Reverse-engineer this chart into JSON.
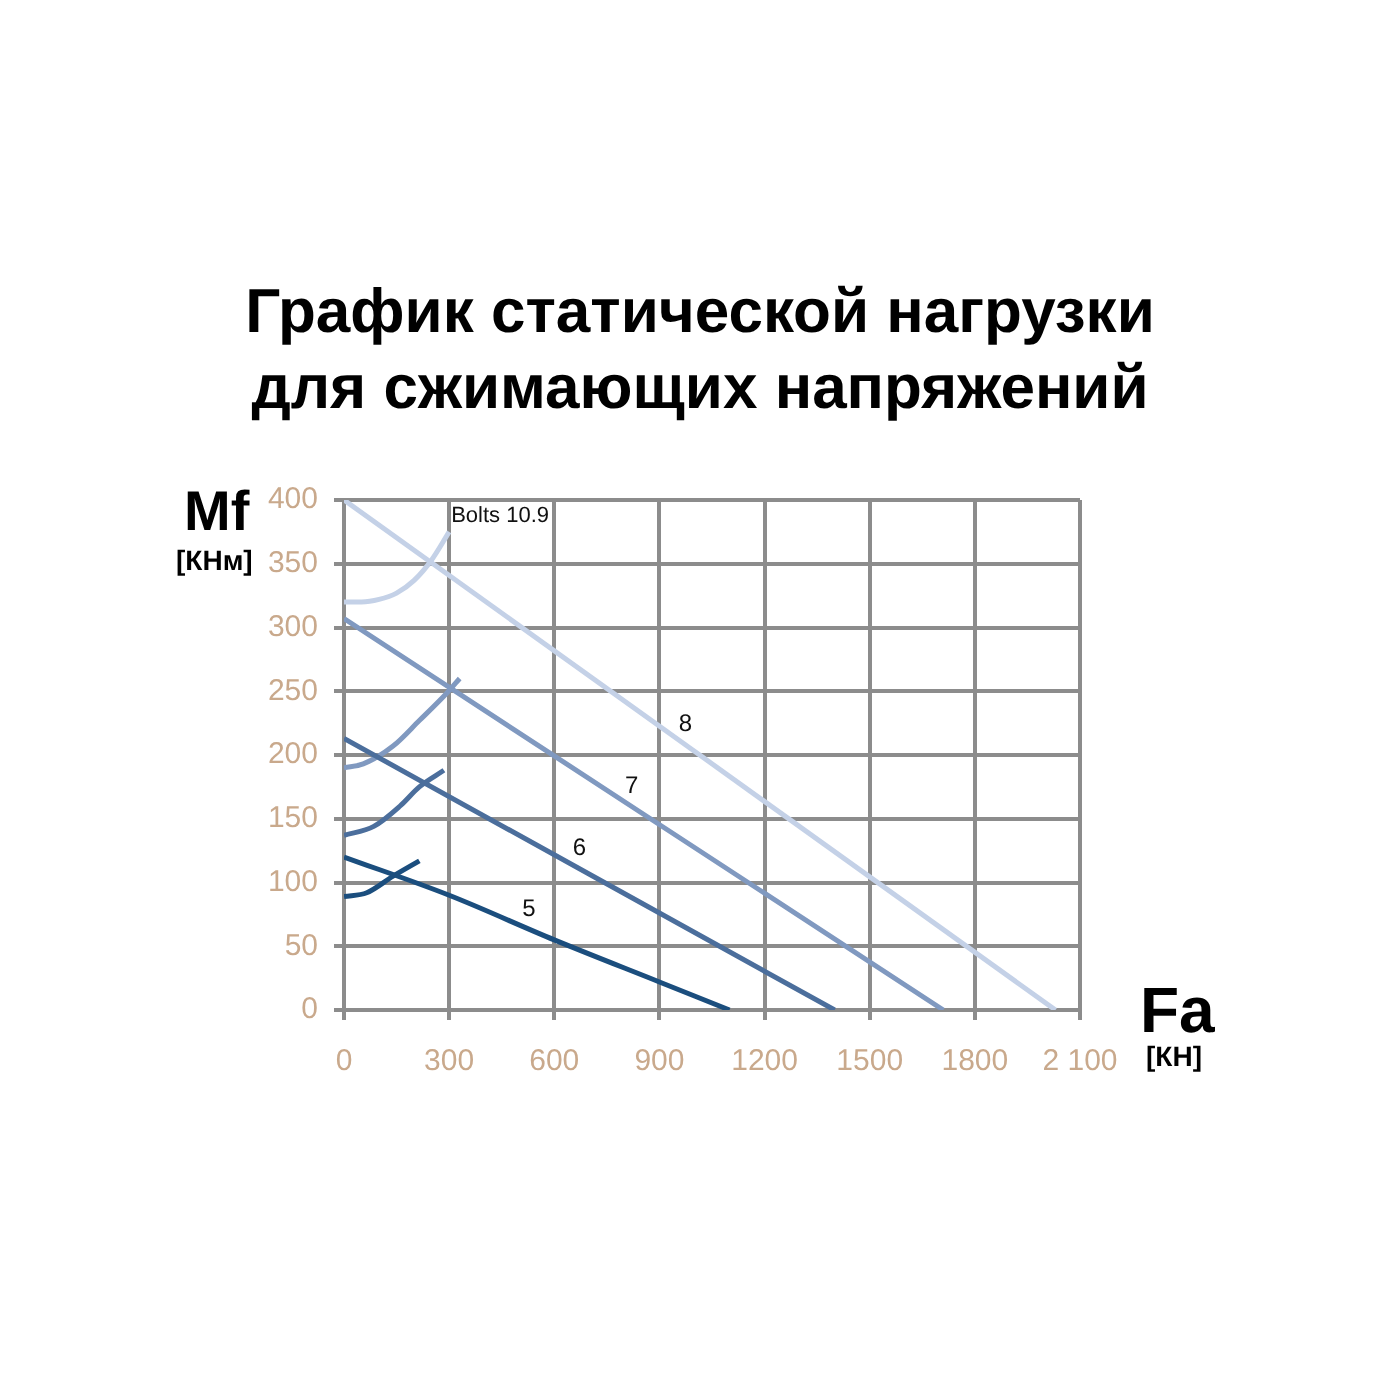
{
  "chart_data": {
    "type": "line",
    "title": "График статической нагрузки для сжимающих напряжений",
    "xlabel": "Fa [КН]",
    "ylabel": "Mf [КНм]",
    "xlim": [
      0,
      2100
    ],
    "xticks": [
      0,
      300,
      600,
      900,
      1200,
      1500,
      1800,
      {
        "value": 2100,
        "label": "2 100"
      }
    ],
    "ylim": [
      0,
      400
    ],
    "yticks": [
      0,
      50,
      100,
      150,
      200,
      250,
      300,
      350,
      400
    ],
    "grid": true,
    "marker": "none",
    "annotations": [
      {
        "text": "Bolts 10.9",
        "x": 300,
        "y": 375
      }
    ],
    "series": [
      {
        "name": "5",
        "color": "#1b4e7e",
        "x": [
          0,
          300,
          600,
          900,
          1100
        ],
        "values": [
          120,
          90,
          55,
          22,
          0
        ]
      },
      {
        "color": "#1b4e7e",
        "x": [
          0,
          65,
          140,
          215
        ],
        "values": [
          89,
          92,
          105,
          117
        ]
      },
      {
        "name": "6",
        "color": "#4b6e9c",
        "x": [
          0,
          1400
        ],
        "values": [
          213,
          0
        ]
      },
      {
        "color": "#4b6e9c",
        "x": [
          0,
          85,
          160,
          215,
          285
        ],
        "values": [
          137,
          144,
          160,
          175,
          188
        ]
      },
      {
        "name": "7",
        "color": "#8099c0",
        "x": [
          0,
          1710
        ],
        "values": [
          307,
          0
        ]
      },
      {
        "color": "#8099c0",
        "x": [
          0,
          55,
          140,
          215,
          295,
          330
        ],
        "values": [
          190,
          193,
          207,
          227,
          249,
          260
        ]
      },
      {
        "name": "8",
        "color": "#c4d1e7",
        "x": [
          0,
          2030
        ],
        "values": [
          400,
          0
        ]
      },
      {
        "color": "#c4d1e7",
        "x": [
          0,
          50,
          100,
          150,
          200,
          250,
          300
        ],
        "values": [
          320,
          320,
          322,
          327,
          337,
          353,
          375
        ]
      }
    ]
  }
}
